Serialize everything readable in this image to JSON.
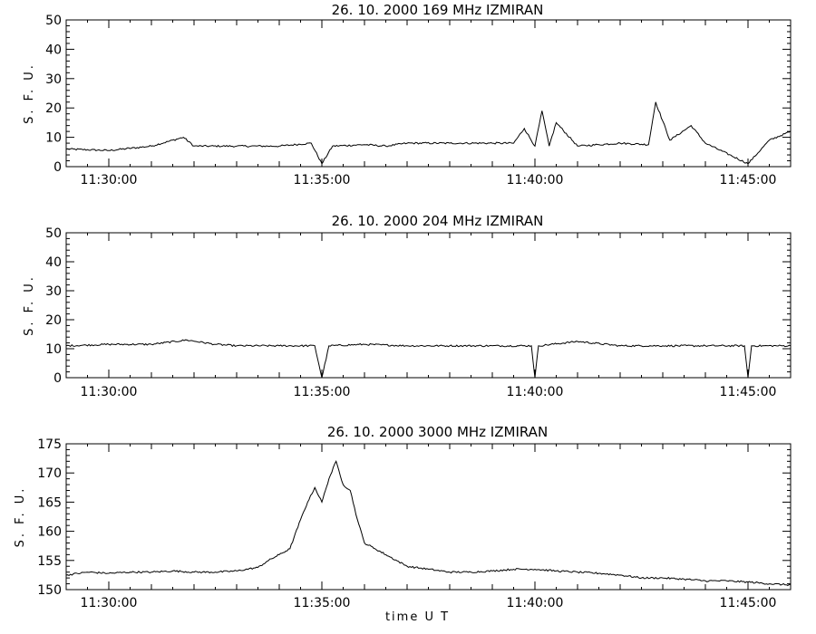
{
  "chart_data": [
    {
      "type": "line",
      "title": "26.  10.  2000    169 MHz    IZMIRAN",
      "ylabel": "S. F. U.",
      "xlabel": "",
      "ylim": [
        0,
        50
      ],
      "yticks": [
        0,
        10,
        20,
        30,
        40,
        50
      ],
      "xlim": [
        "11:29:00",
        "11:46:00"
      ],
      "xticks": [
        "11:30:00",
        "11:35:00",
        "11:40:00",
        "11:45:00"
      ],
      "series": [
        {
          "x": [
            "11:29:00",
            "11:30:00",
            "11:31:00",
            "11:31:45",
            "11:32:00",
            "11:33:00",
            "11:34:00",
            "11:34:45",
            "11:35:00",
            "11:35:15",
            "11:36:00",
            "11:36:30",
            "11:37:00",
            "11:38:00",
            "11:39:00",
            "11:39:30",
            "11:39:45",
            "11:40:00",
            "11:40:10",
            "11:40:20",
            "11:40:30",
            "11:41:00",
            "11:41:30",
            "11:42:00",
            "11:42:40",
            "11:42:50",
            "11:43:10",
            "11:43:40",
            "11:44:00",
            "11:45:00",
            "11:45:30",
            "11:46:00"
          ],
          "values": [
            6,
            5.5,
            7,
            10,
            7,
            7,
            7,
            8,
            1,
            7,
            7.5,
            7,
            8,
            8,
            8,
            8,
            13,
            7,
            19,
            7,
            15,
            7,
            7.5,
            8,
            7.5,
            22,
            9,
            14,
            8,
            1,
            9,
            12
          ]
        }
      ]
    },
    {
      "type": "line",
      "title": "26.  10.  2000    204 MHz    IZMIRAN",
      "ylabel": "S. F. U.",
      "xlabel": "",
      "ylim": [
        0,
        50
      ],
      "yticks": [
        0,
        10,
        20,
        30,
        40,
        50
      ],
      "xlim": [
        "11:29:00",
        "11:46:00"
      ],
      "xticks": [
        "11:30:00",
        "11:35:00",
        "11:40:00",
        "11:45:00"
      ],
      "series": [
        {
          "x": [
            "11:29:00",
            "11:30:00",
            "11:31:00",
            "11:31:50",
            "11:32:30",
            "11:33:00",
            "11:34:00",
            "11:34:50",
            "11:35:00",
            "11:35:10",
            "11:36:00",
            "11:37:00",
            "11:38:00",
            "11:39:00",
            "11:39:55",
            "11:40:00",
            "11:40:05",
            "11:41:00",
            "11:42:00",
            "11:43:00",
            "11:44:00",
            "11:44:55",
            "11:45:00",
            "11:45:05",
            "11:46:00"
          ],
          "values": [
            11,
            11.5,
            11.5,
            13,
            11.5,
            11,
            11,
            11,
            0,
            11,
            11.5,
            11,
            11,
            11,
            11,
            0,
            11,
            12.5,
            11,
            11,
            11,
            11,
            0,
            11,
            11
          ]
        }
      ]
    },
    {
      "type": "line",
      "title": "26.  10.  2000    3000 MHz    IZMIRAN",
      "ylabel": "S. F. U.",
      "xlabel": "time   U T",
      "ylim": [
        150,
        175
      ],
      "yticks": [
        150,
        155,
        160,
        165,
        170,
        175
      ],
      "xlim": [
        "11:29:00",
        "11:46:00"
      ],
      "xticks": [
        "11:30:00",
        "11:35:00",
        "11:40:00",
        "11:45:00"
      ],
      "series": [
        {
          "x": [
            "11:29:00",
            "11:29:30",
            "11:30:00",
            "11:30:30",
            "11:31:00",
            "11:31:30",
            "11:32:00",
            "11:32:30",
            "11:33:00",
            "11:33:30",
            "11:33:45",
            "11:34:00",
            "11:34:15",
            "11:34:30",
            "11:34:40",
            "11:34:50",
            "11:35:00",
            "11:35:05",
            "11:35:10",
            "11:35:20",
            "11:35:30",
            "11:35:40",
            "11:35:50",
            "11:36:00",
            "11:36:15",
            "11:36:30",
            "11:37:00",
            "11:37:30",
            "11:38:00",
            "11:38:30",
            "11:39:00",
            "11:39:30",
            "11:40:00",
            "11:40:30",
            "11:41:00",
            "11:41:30",
            "11:42:00",
            "11:42:30",
            "11:43:00",
            "11:43:30",
            "11:44:00",
            "11:44:30",
            "11:45:00",
            "11:45:30",
            "11:46:00"
          ],
          "values": [
            152.5,
            153,
            152.8,
            153,
            153,
            153.2,
            153,
            153,
            153.2,
            153.8,
            155,
            156,
            157,
            162,
            165,
            167.5,
            165,
            167,
            169,
            172,
            168,
            167,
            162,
            158,
            157,
            156,
            154,
            153.5,
            153,
            153,
            153.2,
            153.5,
            153.5,
            153.2,
            153,
            152.8,
            152.5,
            152,
            152,
            151.8,
            151.5,
            151.5,
            151.3,
            151,
            150.8
          ]
        }
      ]
    }
  ]
}
